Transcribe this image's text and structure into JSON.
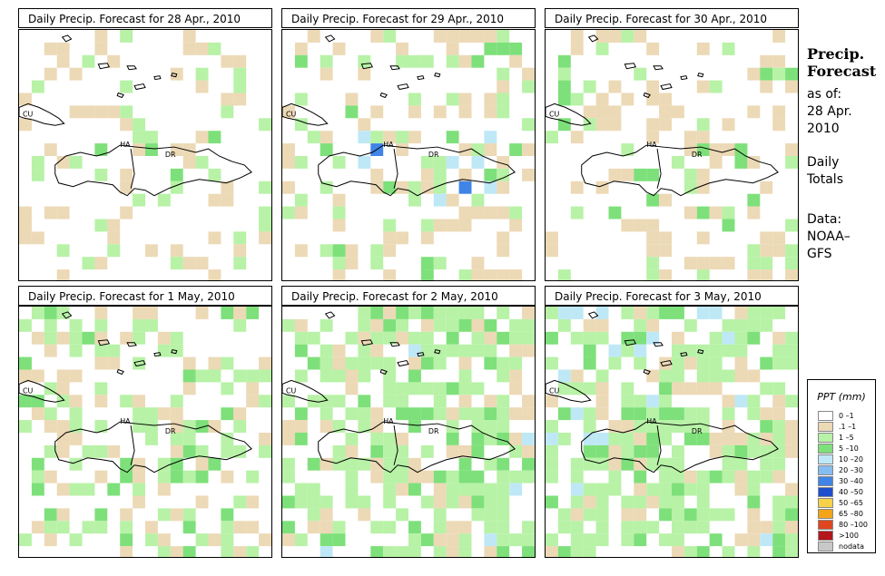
{
  "panels": [
    {
      "title": "Daily Precip. Forecast for  28 Apr., 2010"
    },
    {
      "title": "Daily Precip. Forecast for  29 Apr., 2010"
    },
    {
      "title": "Daily Precip. Forecast for  30 Apr., 2010"
    },
    {
      "title": "Daily Precip. Forecast for  1 May, 2010"
    },
    {
      "title": "Daily Precip. Forecast for  2 May, 2010"
    },
    {
      "title": "Daily Precip. Forecast for  3 May, 2010"
    }
  ],
  "map_labels": {
    "cu": "CU",
    "ha": "HA",
    "dr": "DR"
  },
  "sidebar": {
    "title_line1": "Precip.",
    "title_line2": "Forecast",
    "asof": "as of:",
    "date1": "28 Apr.",
    "date2": "2010",
    "daily1": "Daily",
    "daily2": "Totals",
    "data1": "Data:",
    "data2": "NOAA–",
    "data3": "GFS"
  },
  "legend": {
    "title": "PPT (mm)",
    "items": [
      {
        "label": "0 –1",
        "color": "#ffffff"
      },
      {
        "label": ".1 –1",
        "color": "#ecd9b6"
      },
      {
        "label": "1 –5",
        "color": "#b7f2a6"
      },
      {
        "label": "5 –10",
        "color": "#7ee07a"
      },
      {
        "label": "10 –20",
        "color": "#bfe8f6"
      },
      {
        "label": "20 –30",
        "color": "#86bdf0"
      },
      {
        "label": "30 –40",
        "color": "#3f84e6"
      },
      {
        "label": "40 –50",
        "color": "#1f4fcc"
      },
      {
        "label": "50 –65",
        "color": "#f6d24a"
      },
      {
        "label": "65 –80",
        "color": "#f4a418"
      },
      {
        "label": "80 –100",
        "color": "#e0461e"
      },
      {
        "label": ">100",
        "color": "#b3161b"
      },
      {
        "label": "nodata",
        "color": "#c8c8c8"
      }
    ]
  }
}
